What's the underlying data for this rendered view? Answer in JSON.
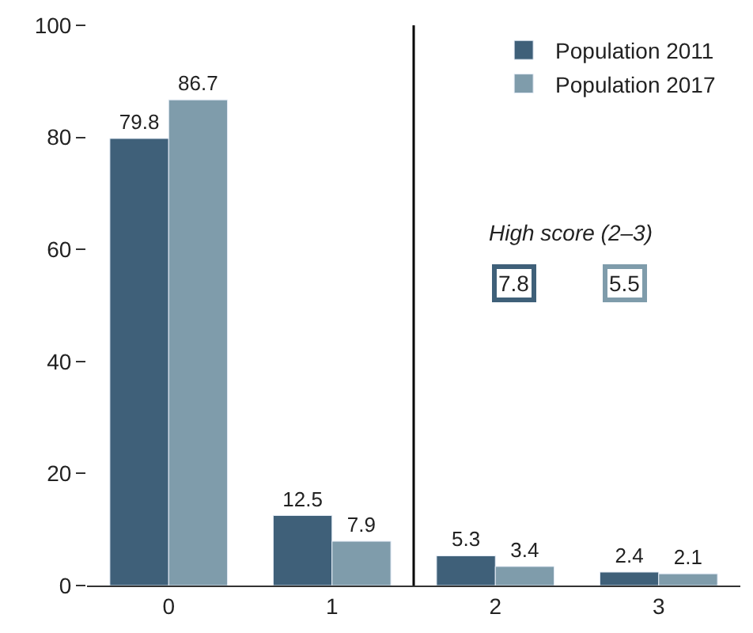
{
  "chart_data": {
    "type": "bar",
    "categories": [
      "0",
      "1",
      "2",
      "3"
    ],
    "series": [
      {
        "name": "Population 2011",
        "color": "#3f6079",
        "values": [
          79.8,
          12.5,
          5.3,
          2.4
        ]
      },
      {
        "name": "Population 2017",
        "color": "#7f9cab",
        "values": [
          86.7,
          7.9,
          3.4,
          2.1
        ]
      }
    ],
    "ylim": [
      0,
      100
    ],
    "yticks": [
      0,
      20,
      40,
      60,
      80,
      100
    ],
    "legend": "top right",
    "data_labels": true,
    "annotations": [
      "High score (2–3)",
      "7.8",
      "5.5"
    ]
  }
}
